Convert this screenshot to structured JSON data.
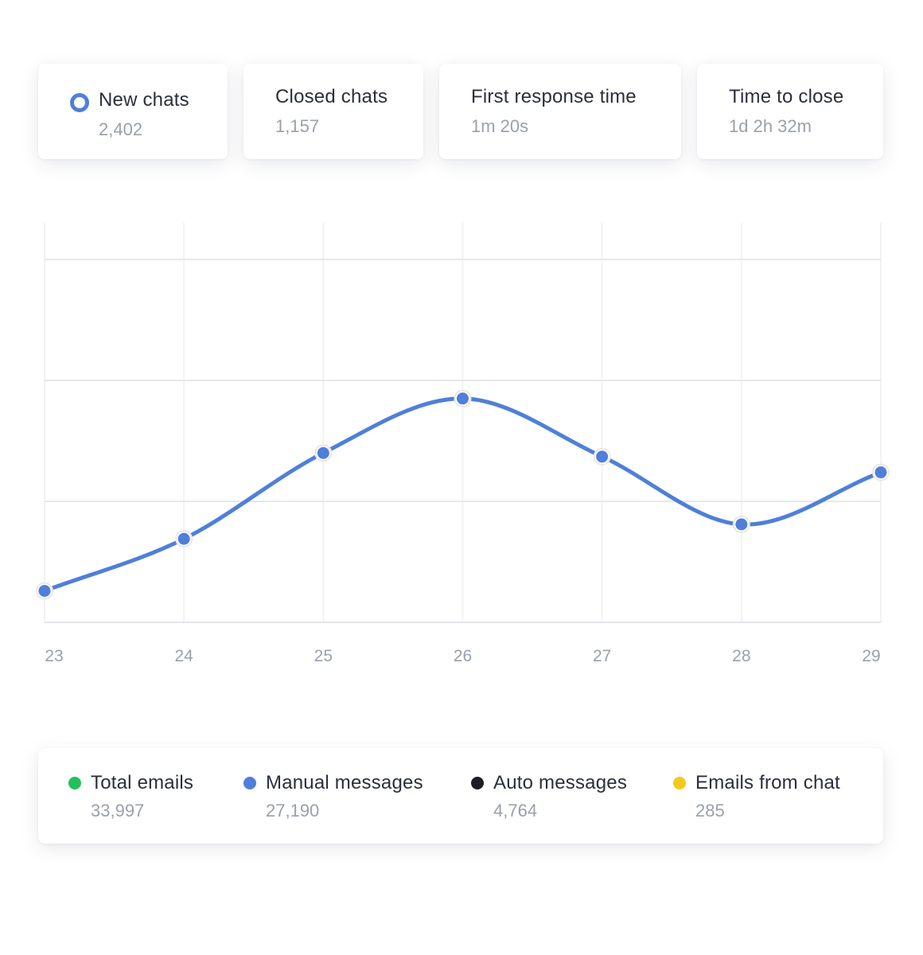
{
  "metrics": [
    {
      "title": "New chats",
      "value": "2,402",
      "selected": true
    },
    {
      "title": "Closed chats",
      "value": "1,157"
    },
    {
      "title": "First response time",
      "value": "1m 20s"
    },
    {
      "title": "Time to close",
      "value": "1d 2h 32m"
    }
  ],
  "chart_data": {
    "type": "line",
    "x": [
      "23",
      "24",
      "25",
      "26",
      "27",
      "28",
      "29"
    ],
    "series": [
      {
        "color": "#4f7fd9",
        "values": [
          0.26,
          0.69,
          1.4,
          1.85,
          1.37,
          0.81,
          1.24
        ]
      }
    ],
    "xlabel": "",
    "ylabel": "",
    "ylim": [
      0,
      3
    ],
    "grid": true,
    "smooth": true
  },
  "legend": [
    {
      "label": "Total emails",
      "value": "33,997",
      "color": "#22c05a"
    },
    {
      "label": "Manual messages",
      "value": "27,190",
      "color": "#4f7fd9"
    },
    {
      "label": "Auto messages",
      "value": "4,764",
      "color": "#1c1e24"
    },
    {
      "label": "Emails from chat",
      "value": "285",
      "color": "#f5c91b"
    }
  ]
}
